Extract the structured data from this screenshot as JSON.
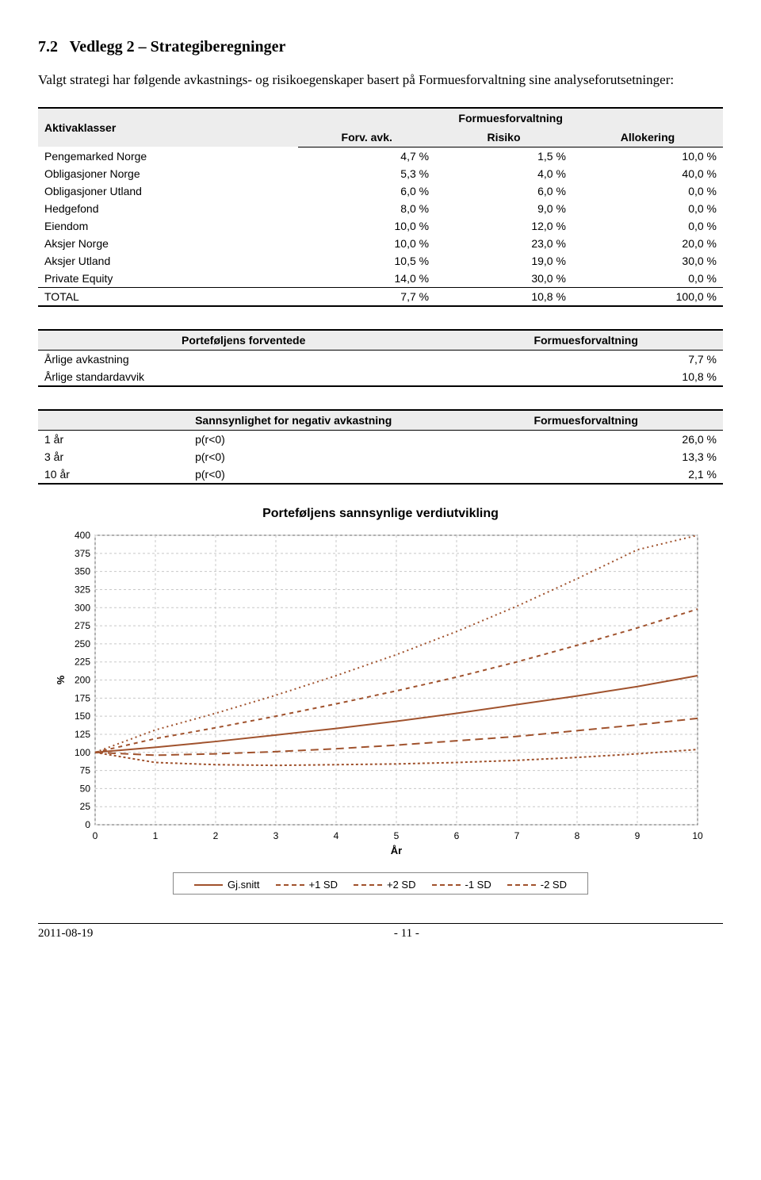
{
  "section": {
    "number": "7.2",
    "title": "Vedlegg 2 – Strategiberegninger",
    "intro": "Valgt strategi har følgende avkastnings- og risikoegenskaper basert på Formuesforvaltning sine analyseforutsetninger:"
  },
  "table1": {
    "header_left": "Aktivaklasser",
    "header_group": "Formuesforvaltning",
    "sub": {
      "c1": "Forv. avk.",
      "c2": "Risiko",
      "c3": "Allokering"
    },
    "rows": [
      {
        "name": "Pengemarked Norge",
        "c1": "4,7 %",
        "c2": "1,5 %",
        "c3": "10,0 %"
      },
      {
        "name": "Obligasjoner Norge",
        "c1": "5,3 %",
        "c2": "4,0 %",
        "c3": "40,0 %"
      },
      {
        "name": "Obligasjoner Utland",
        "c1": "6,0 %",
        "c2": "6,0 %",
        "c3": "0,0 %"
      },
      {
        "name": "Hedgefond",
        "c1": "8,0 %",
        "c2": "9,0 %",
        "c3": "0,0 %"
      },
      {
        "name": "Eiendom",
        "c1": "10,0 %",
        "c2": "12,0 %",
        "c3": "0,0 %"
      },
      {
        "name": "Aksjer Norge",
        "c1": "10,0 %",
        "c2": "23,0 %",
        "c3": "20,0 %"
      },
      {
        "name": "Aksjer Utland",
        "c1": "10,5 %",
        "c2": "19,0 %",
        "c3": "30,0 %"
      },
      {
        "name": "Private Equity",
        "c1": "14,0 %",
        "c2": "30,0 %",
        "c3": "0,0 %"
      }
    ],
    "total": {
      "name": "TOTAL",
      "c1": "7,7 %",
      "c2": "10,8 %",
      "c3": "100,0 %"
    }
  },
  "table2": {
    "header_left": "Porteføljens forventede",
    "header_right": "Formuesforvaltning",
    "rows": [
      {
        "name": "Årlige avkastning",
        "val": "7,7 %"
      },
      {
        "name": "Årlige standardavvik",
        "val": "10,8 %"
      }
    ]
  },
  "table3": {
    "header_left": "Sannsynlighet for negativ avkastning",
    "header_right": "Formuesforvaltning",
    "rows": [
      {
        "name": "1 år",
        "p": "p(r<0)",
        "val": "26,0 %"
      },
      {
        "name": "3 år",
        "p": "p(r<0)",
        "val": "13,3 %"
      },
      {
        "name": "10 år",
        "p": "p(r<0)",
        "val": "2,1 %"
      }
    ]
  },
  "chart": {
    "title": "Porteføljens sannsynlige verdiutvikling",
    "ylabel": "%",
    "xlabel": "År",
    "x_ticks": [
      0,
      1,
      2,
      3,
      4,
      5,
      6,
      7,
      8,
      9,
      10
    ],
    "y_ticks": [
      0,
      25,
      50,
      75,
      100,
      125,
      150,
      175,
      200,
      225,
      250,
      275,
      300,
      325,
      350,
      375,
      400
    ],
    "xlim": [
      0,
      10
    ],
    "ylim": [
      0,
      400
    ],
    "plot_bg": "#ffffff",
    "grid_color": "#c8c8c8",
    "line_color": "#a0522d",
    "line_width": 2,
    "series": {
      "mean": {
        "label": "Gj.snitt",
        "dash": "none",
        "pts": [
          [
            0,
            100
          ],
          [
            1,
            107
          ],
          [
            2,
            115
          ],
          [
            3,
            124
          ],
          [
            4,
            133
          ],
          [
            5,
            143
          ],
          [
            6,
            154
          ],
          [
            7,
            166
          ],
          [
            8,
            178
          ],
          [
            9,
            191
          ],
          [
            10,
            206
          ]
        ]
      },
      "p1sd": {
        "label": "+1 SD",
        "dash": "5,5",
        "pts": [
          [
            0,
            100
          ],
          [
            1,
            119
          ],
          [
            2,
            134
          ],
          [
            3,
            150
          ],
          [
            4,
            167
          ],
          [
            5,
            185
          ],
          [
            6,
            204
          ],
          [
            7,
            225
          ],
          [
            8,
            248
          ],
          [
            9,
            272
          ],
          [
            10,
            298
          ]
        ]
      },
      "p2sd": {
        "label": "+2 SD",
        "dash": "2,4",
        "pts": [
          [
            0,
            100
          ],
          [
            1,
            131
          ],
          [
            2,
            154
          ],
          [
            3,
            179
          ],
          [
            4,
            206
          ],
          [
            5,
            235
          ],
          [
            6,
            267
          ],
          [
            7,
            302
          ],
          [
            8,
            340
          ],
          [
            9,
            380
          ],
          [
            10,
            400
          ]
        ]
      },
      "m1sd": {
        "label": "-1 SD",
        "dash": "10,6",
        "pts": [
          [
            0,
            100
          ],
          [
            1,
            96
          ],
          [
            2,
            98
          ],
          [
            3,
            101
          ],
          [
            4,
            105
          ],
          [
            5,
            110
          ],
          [
            6,
            116
          ],
          [
            7,
            122
          ],
          [
            8,
            130
          ],
          [
            9,
            138
          ],
          [
            10,
            147
          ]
        ]
      },
      "m2sd": {
        "label": "-2 SD",
        "dash": "3,3",
        "pts": [
          [
            0,
            100
          ],
          [
            1,
            86
          ],
          [
            2,
            83
          ],
          [
            3,
            82
          ],
          [
            4,
            83
          ],
          [
            5,
            84
          ],
          [
            6,
            86
          ],
          [
            7,
            89
          ],
          [
            8,
            93
          ],
          [
            9,
            98
          ],
          [
            10,
            104
          ]
        ]
      }
    },
    "legend_order": [
      "mean",
      "p1sd",
      "p2sd",
      "m1sd",
      "m2sd"
    ]
  },
  "footer": {
    "date": "2011-08-19",
    "page": "- 11 -"
  }
}
